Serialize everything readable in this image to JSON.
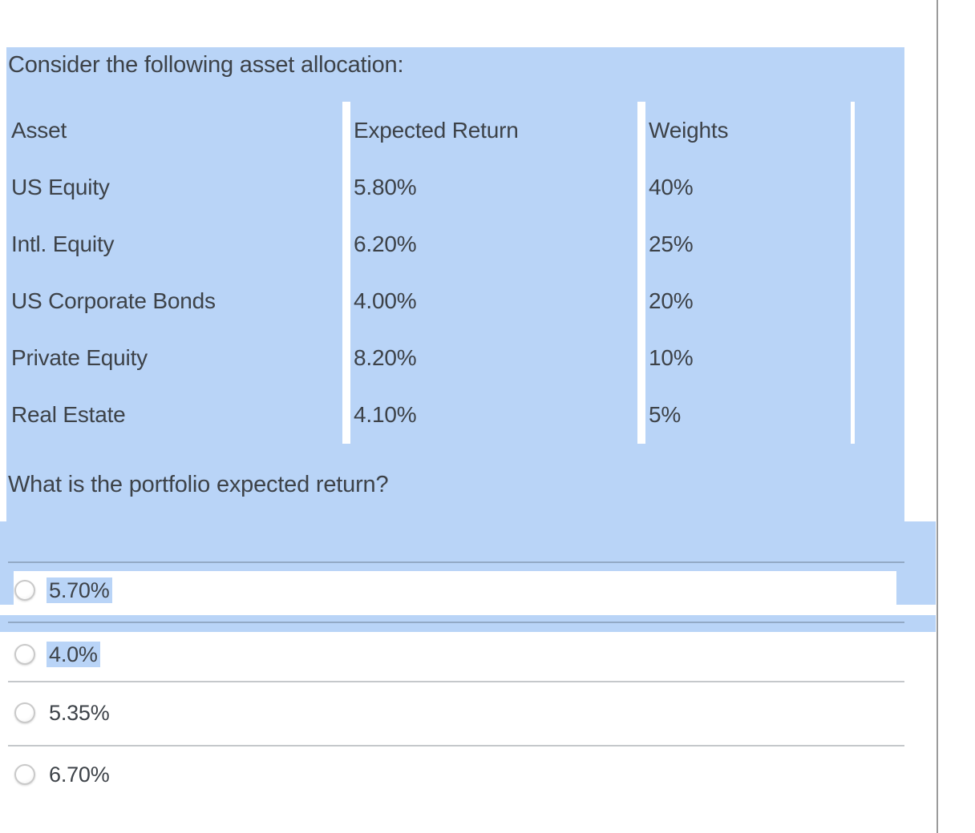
{
  "question": {
    "intro": "Consider the following asset allocation:",
    "prompt": "What is the portfolio expected return?"
  },
  "table": {
    "headers": [
      "Asset",
      "Expected Return",
      "Weights"
    ],
    "rows": [
      [
        "US Equity",
        "5.80%",
        "40%"
      ],
      [
        "Intl. Equity",
        "6.20%",
        "25%"
      ],
      [
        "US Corporate Bonds",
        "4.00%",
        "20%"
      ],
      [
        "Private Equity",
        "8.20%",
        "10%"
      ],
      [
        "Real Estate",
        "4.10%",
        "5%"
      ]
    ]
  },
  "options": [
    {
      "label": "5.70%",
      "selected": false,
      "text_highlighted": true
    },
    {
      "label": "4.0%",
      "selected": false,
      "text_highlighted": true
    },
    {
      "label": "5.35%",
      "selected": false,
      "text_highlighted": false
    },
    {
      "label": "6.70%",
      "selected": false,
      "text_highlighted": false
    }
  ],
  "colors": {
    "selection_blue": "#b9d4f7",
    "text": "#3d4248",
    "divider": "rgba(45,59,69,0.28)",
    "right_rule_gray": "#9b9b9b",
    "radio_border": "#c9c9c9"
  }
}
